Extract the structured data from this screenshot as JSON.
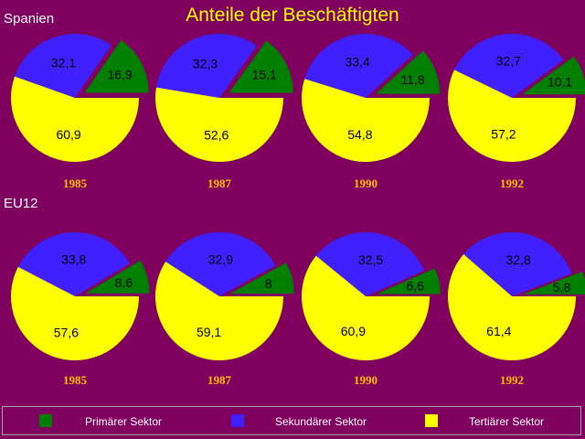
{
  "title": "Anteile der Beschäftigten",
  "regions": [
    "Spanien",
    "EU12"
  ],
  "colors": {
    "background": "#800060",
    "primary": "#008000",
    "secondary": "#4020ff",
    "tertiary": "#ffff00",
    "year_label": "#ffc000",
    "title": "#ffff00"
  },
  "legend": [
    {
      "label": "Primärer Sektor",
      "color": "#008000"
    },
    {
      "label": "Sekundärer Sektor",
      "color": "#4020ff"
    },
    {
      "label": "Tertiärer Sektor",
      "color": "#ffff00"
    }
  ],
  "chart_data": [
    {
      "type": "pie",
      "region": "Spanien",
      "year": "1985",
      "labels": [
        "Primärer Sektor",
        "Sekundärer Sektor",
        "Tertiärer Sektor"
      ],
      "values": [
        16.9,
        32.1,
        60.9
      ],
      "value_labels": [
        "16,9",
        "32,1",
        "60,9"
      ]
    },
    {
      "type": "pie",
      "region": "Spanien",
      "year": "1987",
      "labels": [
        "Primärer Sektor",
        "Sekundärer Sektor",
        "Tertiärer Sektor"
      ],
      "values": [
        15.1,
        32.3,
        52.6
      ],
      "value_labels": [
        "15,1",
        "32,3",
        "52,6"
      ]
    },
    {
      "type": "pie",
      "region": "Spanien",
      "year": "1990",
      "labels": [
        "Primärer Sektor",
        "Sekundärer Sektor",
        "Tertiärer Sektor"
      ],
      "values": [
        11.8,
        33.4,
        54.8
      ],
      "value_labels": [
        "11,8",
        "33,4",
        "54,8"
      ]
    },
    {
      "type": "pie",
      "region": "Spanien",
      "year": "1992",
      "labels": [
        "Primärer Sektor",
        "Sekundärer Sektor",
        "Tertiärer Sektor"
      ],
      "values": [
        10.1,
        32.7,
        57.2
      ],
      "value_labels": [
        "10,1",
        "32,7",
        "57,2"
      ]
    },
    {
      "type": "pie",
      "region": "EU12",
      "year": "1985",
      "labels": [
        "Primärer Sektor",
        "Sekundärer Sektor",
        "Tertiärer Sektor"
      ],
      "values": [
        8.6,
        33.8,
        57.6
      ],
      "value_labels": [
        "8,6",
        "33,8",
        "57,6"
      ]
    },
    {
      "type": "pie",
      "region": "EU12",
      "year": "1987",
      "labels": [
        "Primärer Sektor",
        "Sekundärer Sektor",
        "Tertiärer Sektor"
      ],
      "values": [
        8,
        32.9,
        59.1
      ],
      "value_labels": [
        "8",
        "32,9",
        "59,1"
      ]
    },
    {
      "type": "pie",
      "region": "EU12",
      "year": "1990",
      "labels": [
        "Primärer Sektor",
        "Sekundärer Sektor",
        "Tertiärer Sektor"
      ],
      "values": [
        6.6,
        32.5,
        60.9
      ],
      "value_labels": [
        "6,6",
        "32,5",
        "60,9"
      ]
    },
    {
      "type": "pie",
      "region": "EU12",
      "year": "1992",
      "labels": [
        "Primärer Sektor",
        "Sekundärer Sektor",
        "Tertiärer Sektor"
      ],
      "values": [
        5.8,
        32.8,
        61.4
      ],
      "value_labels": [
        "5,8",
        "32,8",
        "61,4"
      ]
    }
  ]
}
